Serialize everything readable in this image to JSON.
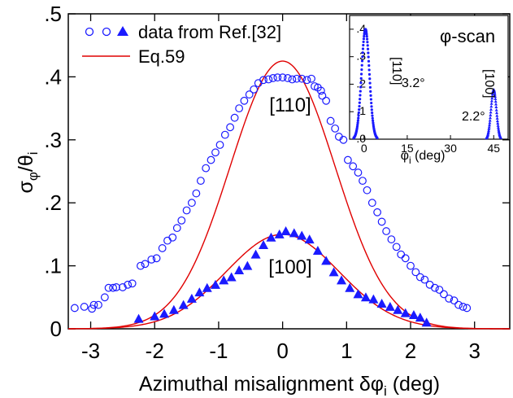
{
  "chart_data": [
    {
      "type": "scatter",
      "xlabel": "Azimuthal misalignment δφ",
      "xlabel_sub": "i",
      "xlabel_suffix": " (deg)",
      "ylabel": "σ",
      "ylabel_sub1": "φ",
      "ylabel_mid": "/θ",
      "ylabel_sub2": "i",
      "xlim": [
        -3.35,
        3.55
      ],
      "ylim": [
        0,
        0.5
      ],
      "x_ticks": [
        -3,
        -2,
        -1,
        0,
        1,
        2,
        3
      ],
      "x_tick_labels": [
        "-3",
        "-2",
        "-1",
        "0",
        "1",
        "2",
        "3"
      ],
      "y_ticks": [
        0,
        0.1,
        0.2,
        0.3,
        0.4,
        0.5
      ],
      "y_tick_labels": [
        "0",
        ".1",
        ".2",
        ".3",
        ".4",
        ".5"
      ],
      "legend": {
        "position": "top-left",
        "entries": [
          "data from Ref.[32]",
          "Eq.59"
        ]
      },
      "annotations": [
        "[110]",
        "[100]"
      ],
      "series": [
        {
          "name": "data from Ref.[32]",
          "label": "[110]",
          "marker": "open-circle",
          "color": "#1a1aff",
          "x": [
            -3.25,
            -3.1,
            -2.98,
            -2.95,
            -2.88,
            -2.78,
            -2.72,
            -2.65,
            -2.6,
            -2.5,
            -2.42,
            -2.35,
            -2.22,
            -2.15,
            -2.05,
            -1.97,
            -1.88,
            -1.8,
            -1.72,
            -1.65,
            -1.58,
            -1.5,
            -1.42,
            -1.35,
            -1.28,
            -1.2,
            -1.12,
            -1.05,
            -0.98,
            -0.9,
            -0.82,
            -0.75,
            -0.68,
            -0.6,
            -0.52,
            -0.45,
            -0.38,
            -0.3,
            -0.22,
            -0.15,
            -0.08,
            0,
            0.08,
            0.15,
            0.22,
            0.3,
            0.38,
            0.45,
            0.5,
            0.55,
            0.6,
            0.62,
            0.68,
            0.75,
            0.82,
            0.88,
            0.95,
            1.02,
            1.1,
            1.18,
            1.25,
            1.32,
            1.4,
            1.48,
            1.55,
            1.62,
            1.7,
            1.78,
            1.85,
            1.92,
            2.0,
            2.08,
            2.15,
            2.22,
            2.3,
            2.38,
            2.45,
            2.52,
            2.6,
            2.68,
            2.75,
            2.82,
            2.88
          ],
          "y": [
            0.033,
            0.035,
            0.032,
            0.038,
            0.038,
            0.05,
            0.065,
            0.065,
            0.066,
            0.066,
            0.07,
            0.072,
            0.1,
            0.103,
            0.11,
            0.112,
            0.128,
            0.14,
            0.145,
            0.16,
            0.172,
            0.188,
            0.2,
            0.215,
            0.235,
            0.255,
            0.268,
            0.28,
            0.292,
            0.308,
            0.32,
            0.335,
            0.35,
            0.362,
            0.372,
            0.38,
            0.39,
            0.395,
            0.396,
            0.398,
            0.399,
            0.399,
            0.398,
            0.396,
            0.397,
            0.397,
            0.395,
            0.397,
            0.385,
            0.383,
            0.378,
            0.37,
            0.362,
            0.33,
            0.318,
            0.305,
            0.3,
            0.268,
            0.258,
            0.248,
            0.235,
            0.22,
            0.2,
            0.185,
            0.17,
            0.155,
            0.142,
            0.13,
            0.118,
            0.112,
            0.1,
            0.09,
            0.082,
            0.078,
            0.07,
            0.065,
            0.062,
            0.055,
            0.048,
            0.045,
            0.038,
            0.035,
            0.033
          ]
        },
        {
          "name": "data from Ref.[32]",
          "label": "[100]",
          "marker": "filled-triangle",
          "color": "#1a1aff",
          "x": [
            -2.25,
            -2.0,
            -1.85,
            -1.7,
            -1.55,
            -1.42,
            -1.3,
            -1.18,
            -1.05,
            -0.92,
            -0.8,
            -0.68,
            -0.55,
            -0.42,
            -0.3,
            -0.18,
            -0.05,
            0.05,
            0.18,
            0.3,
            0.42,
            0.55,
            0.68,
            0.8,
            0.92,
            1.05,
            1.18,
            1.3,
            1.42,
            1.55,
            1.68,
            1.8,
            1.92,
            2.05,
            2.15,
            2.25
          ],
          "y": [
            0.016,
            0.02,
            0.024,
            0.03,
            0.038,
            0.048,
            0.058,
            0.065,
            0.07,
            0.077,
            0.082,
            0.093,
            0.1,
            0.118,
            0.133,
            0.145,
            0.15,
            0.155,
            0.152,
            0.148,
            0.142,
            0.124,
            0.108,
            0.09,
            0.077,
            0.065,
            0.055,
            0.05,
            0.047,
            0.04,
            0.035,
            0.03,
            0.025,
            0.022,
            0.018,
            0.01
          ]
        },
        {
          "name": "Eq.59",
          "label": "[110]",
          "marker": "line",
          "color": "#e00000",
          "amplitude": 0.425,
          "sigma": 0.82
        },
        {
          "name": "Eq.59",
          "label": "[100]",
          "marker": "line",
          "color": "#e00000",
          "amplitude": 0.15,
          "sigma": 0.88
        }
      ]
    },
    {
      "type": "scatter",
      "title": "φ-scan",
      "xlabel": "φ",
      "xlabel_sub": "i",
      "xlabel_suffix": " (deg)",
      "xlim": [
        -5,
        50
      ],
      "ylim": [
        0,
        0.45
      ],
      "x_ticks": [
        0,
        15,
        30,
        45
      ],
      "x_tick_labels": [
        "0",
        "15",
        "30",
        "45"
      ],
      "y_ticks": [
        0,
        0.1,
        0.2,
        0.3,
        0.4
      ],
      "y_tick_labels": [
        ".0",
        ".1",
        ".2",
        ".3",
        ".4"
      ],
      "annotations": [
        "[110]",
        "[100]",
        "3.2°",
        "2.2°"
      ],
      "series": [
        {
          "label": "[110]",
          "marker": "filled-dot",
          "color": "#1a1aff",
          "center": 0.5,
          "amplitude": 0.4,
          "sigma": 1.36
        },
        {
          "label": "[100]",
          "marker": "small-triangle",
          "color": "#1a1aff",
          "center": 45,
          "amplitude": 0.18,
          "sigma": 0.93
        }
      ]
    }
  ]
}
